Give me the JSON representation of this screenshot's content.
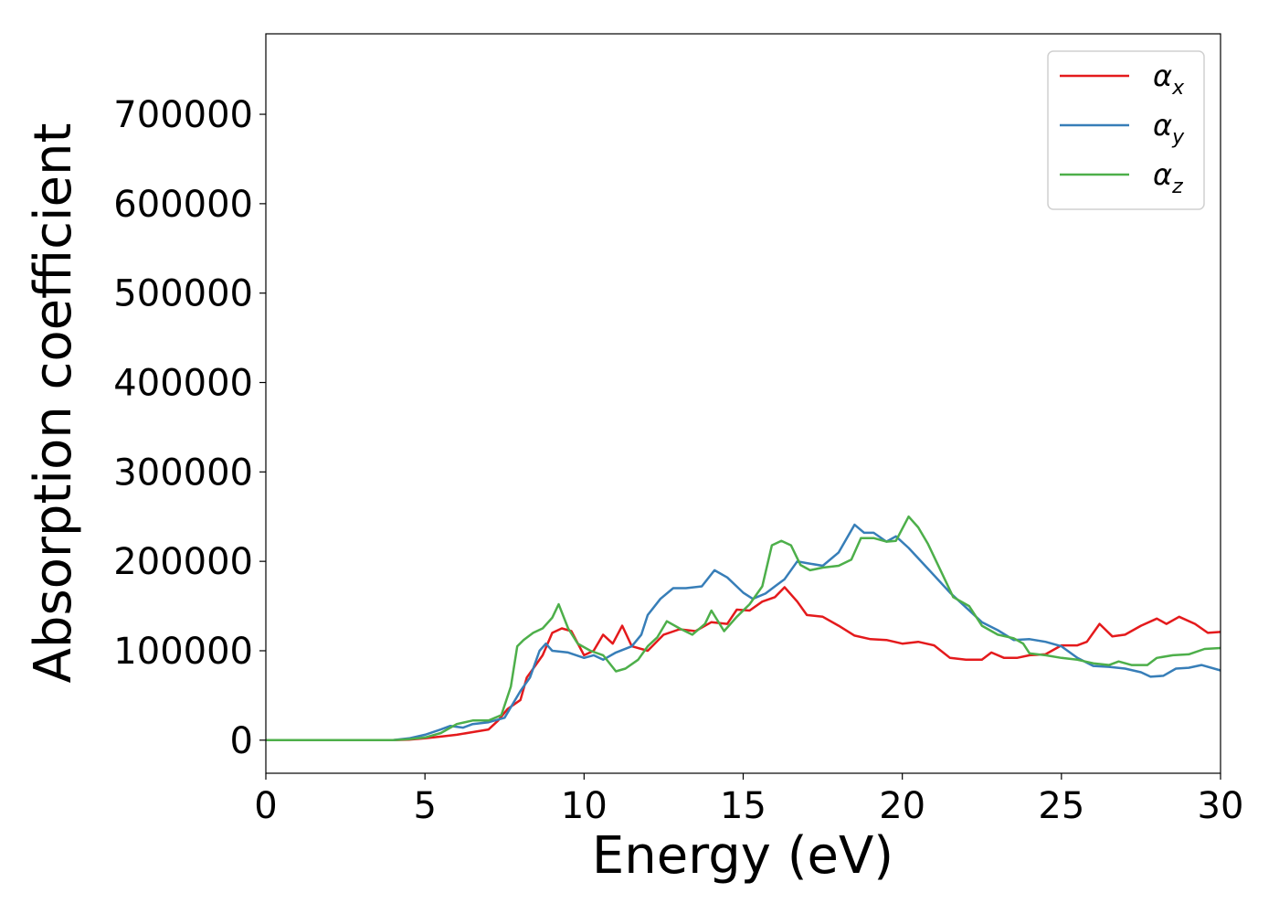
{
  "chart_data": {
    "type": "line",
    "xlabel": "Energy (eV)",
    "ylabel": "Absorption coefficient",
    "xlim": [
      0,
      30
    ],
    "ylim": [
      -37000,
      790000
    ],
    "x_ticks": [
      0,
      5,
      10,
      15,
      20,
      25,
      30
    ],
    "y_ticks": [
      0,
      100000,
      200000,
      300000,
      400000,
      500000,
      600000,
      700000
    ],
    "x_tick_labels": [
      "0",
      "5",
      "10",
      "15",
      "20",
      "25",
      "30"
    ],
    "y_tick_labels": [
      "0",
      "100000",
      "200000",
      "300000",
      "400000",
      "500000",
      "600000",
      "700000"
    ],
    "grid": false,
    "legend_position": "top-right",
    "series": [
      {
        "name": "α",
        "subscript": "x",
        "color": "#e41a1c",
        "points": [
          [
            0,
            0
          ],
          [
            4,
            0
          ],
          [
            4.5,
            500
          ],
          [
            5,
            2000
          ],
          [
            5.5,
            4000
          ],
          [
            6,
            6000
          ],
          [
            6.5,
            9000
          ],
          [
            7,
            12000
          ],
          [
            7.3,
            22000
          ],
          [
            7.6,
            35000
          ],
          [
            8,
            45000
          ],
          [
            8.2,
            70000
          ],
          [
            8.5,
            85000
          ],
          [
            8.7,
            95000
          ],
          [
            9,
            120000
          ],
          [
            9.3,
            125000
          ],
          [
            9.6,
            122000
          ],
          [
            10,
            95000
          ],
          [
            10.3,
            100000
          ],
          [
            10.6,
            118000
          ],
          [
            10.9,
            108000
          ],
          [
            11.2,
            128000
          ],
          [
            11.5,
            105000
          ],
          [
            12,
            100000
          ],
          [
            12.5,
            118000
          ],
          [
            13,
            124000
          ],
          [
            13.5,
            122000
          ],
          [
            14,
            132000
          ],
          [
            14.5,
            130000
          ],
          [
            14.8,
            146000
          ],
          [
            15.2,
            145000
          ],
          [
            15.6,
            155000
          ],
          [
            16,
            160000
          ],
          [
            16.3,
            171000
          ],
          [
            16.7,
            155000
          ],
          [
            17,
            140000
          ],
          [
            17.5,
            138000
          ],
          [
            18,
            128000
          ],
          [
            18.5,
            117000
          ],
          [
            19,
            113000
          ],
          [
            19.5,
            112000
          ],
          [
            20,
            108000
          ],
          [
            20.5,
            110000
          ],
          [
            21,
            106000
          ],
          [
            21.5,
            92000
          ],
          [
            22,
            90000
          ],
          [
            22.5,
            90000
          ],
          [
            22.8,
            98000
          ],
          [
            23.2,
            92000
          ],
          [
            23.6,
            92000
          ],
          [
            24,
            95000
          ],
          [
            24.5,
            96000
          ],
          [
            25,
            106000
          ],
          [
            25.5,
            106000
          ],
          [
            25.8,
            110000
          ],
          [
            26.2,
            130000
          ],
          [
            26.6,
            116000
          ],
          [
            27,
            118000
          ],
          [
            27.5,
            128000
          ],
          [
            28,
            136000
          ],
          [
            28.3,
            130000
          ],
          [
            28.7,
            138000
          ],
          [
            29.2,
            130000
          ],
          [
            29.6,
            120000
          ],
          [
            30,
            121000
          ]
        ]
      },
      {
        "name": "α",
        "subscript": "y",
        "color": "#377eb8",
        "points": [
          [
            0,
            0
          ],
          [
            4,
            0
          ],
          [
            4.5,
            2000
          ],
          [
            5,
            6000
          ],
          [
            5.5,
            12000
          ],
          [
            5.8,
            16000
          ],
          [
            6.2,
            14000
          ],
          [
            6.5,
            18000
          ],
          [
            7,
            20000
          ],
          [
            7.5,
            25000
          ],
          [
            8,
            55000
          ],
          [
            8.3,
            70000
          ],
          [
            8.6,
            100000
          ],
          [
            8.8,
            108000
          ],
          [
            9,
            100000
          ],
          [
            9.5,
            98000
          ],
          [
            10,
            92000
          ],
          [
            10.3,
            95000
          ],
          [
            10.6,
            90000
          ],
          [
            11,
            98000
          ],
          [
            11.5,
            105000
          ],
          [
            11.8,
            118000
          ],
          [
            12,
            140000
          ],
          [
            12.4,
            158000
          ],
          [
            12.8,
            170000
          ],
          [
            13.2,
            170000
          ],
          [
            13.7,
            172000
          ],
          [
            14.1,
            190000
          ],
          [
            14.5,
            182000
          ],
          [
            15,
            165000
          ],
          [
            15.3,
            158000
          ],
          [
            15.7,
            164000
          ],
          [
            16,
            172000
          ],
          [
            16.3,
            180000
          ],
          [
            16.7,
            200000
          ],
          [
            17,
            198000
          ],
          [
            17.5,
            195000
          ],
          [
            18,
            210000
          ],
          [
            18.5,
            241000
          ],
          [
            18.8,
            232000
          ],
          [
            19.1,
            232000
          ],
          [
            19.5,
            222000
          ],
          [
            19.8,
            228000
          ],
          [
            20.2,
            215000
          ],
          [
            20.8,
            192000
          ],
          [
            21.5,
            165000
          ],
          [
            22.5,
            132000
          ],
          [
            23,
            123000
          ],
          [
            23.5,
            112000
          ],
          [
            24,
            113000
          ],
          [
            24.5,
            110000
          ],
          [
            25,
            105000
          ],
          [
            25.5,
            92000
          ],
          [
            26,
            83000
          ],
          [
            26.5,
            82000
          ],
          [
            27,
            80000
          ],
          [
            27.5,
            76000
          ],
          [
            27.8,
            71000
          ],
          [
            28.2,
            72000
          ],
          [
            28.6,
            80000
          ],
          [
            29,
            81000
          ],
          [
            29.4,
            84000
          ],
          [
            30,
            78000
          ]
        ]
      },
      {
        "name": "α",
        "subscript": "z",
        "color": "#4daf4a",
        "points": [
          [
            0,
            0
          ],
          [
            4,
            0
          ],
          [
            4.5,
            1000
          ],
          [
            5,
            3000
          ],
          [
            5.5,
            8000
          ],
          [
            6,
            18000
          ],
          [
            6.5,
            22000
          ],
          [
            7,
            22000
          ],
          [
            7.4,
            28000
          ],
          [
            7.7,
            60000
          ],
          [
            7.9,
            105000
          ],
          [
            8.1,
            112000
          ],
          [
            8.4,
            120000
          ],
          [
            8.7,
            125000
          ],
          [
            9,
            137000
          ],
          [
            9.2,
            152000
          ],
          [
            9.5,
            125000
          ],
          [
            9.8,
            108000
          ],
          [
            10.2,
            100000
          ],
          [
            10.6,
            95000
          ],
          [
            11,
            77000
          ],
          [
            11.3,
            80000
          ],
          [
            11.7,
            90000
          ],
          [
            12,
            105000
          ],
          [
            12.3,
            115000
          ],
          [
            12.6,
            133000
          ],
          [
            13,
            125000
          ],
          [
            13.4,
            118000
          ],
          [
            13.8,
            130000
          ],
          [
            14,
            145000
          ],
          [
            14.4,
            122000
          ],
          [
            14.8,
            138000
          ],
          [
            15.2,
            152000
          ],
          [
            15.6,
            172000
          ],
          [
            15.9,
            218000
          ],
          [
            16.2,
            223000
          ],
          [
            16.5,
            218000
          ],
          [
            16.8,
            196000
          ],
          [
            17.1,
            190000
          ],
          [
            17.5,
            193000
          ],
          [
            18,
            195000
          ],
          [
            18.4,
            202000
          ],
          [
            18.7,
            226000
          ],
          [
            19.1,
            226000
          ],
          [
            19.5,
            222000
          ],
          [
            19.8,
            223000
          ],
          [
            20.2,
            250000
          ],
          [
            20.5,
            238000
          ],
          [
            20.8,
            220000
          ],
          [
            21.2,
            190000
          ],
          [
            21.6,
            160000
          ],
          [
            22.1,
            150000
          ],
          [
            22.5,
            128000
          ],
          [
            23,
            118000
          ],
          [
            23.5,
            114000
          ],
          [
            23.8,
            108000
          ],
          [
            24,
            97000
          ],
          [
            24.5,
            95000
          ],
          [
            25,
            92000
          ],
          [
            25.5,
            90000
          ],
          [
            26,
            86000
          ],
          [
            26.5,
            84000
          ],
          [
            26.8,
            88000
          ],
          [
            27.2,
            84000
          ],
          [
            27.7,
            84000
          ],
          [
            28,
            92000
          ],
          [
            28.5,
            95000
          ],
          [
            29,
            96000
          ],
          [
            29.5,
            102000
          ],
          [
            30,
            103000
          ]
        ]
      }
    ]
  }
}
